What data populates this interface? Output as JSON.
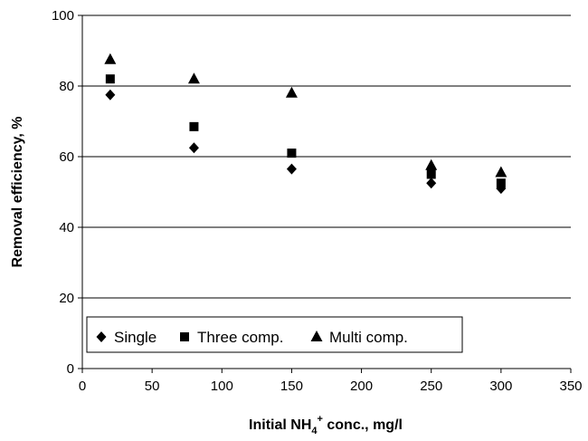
{
  "chart_data": {
    "type": "scatter",
    "title": "",
    "xlabel": {
      "prefix": "Initial NH",
      "sub": "4",
      "sup": "+",
      "suffix": " conc., mg/l"
    },
    "ylabel": "Removal efficiency, %",
    "xlim": [
      0,
      350
    ],
    "ylim": [
      0,
      100
    ],
    "x_ticks": [
      "0",
      "50",
      "100",
      "150",
      "200",
      "250",
      "300",
      "350"
    ],
    "y_ticks": [
      "0",
      "20",
      "40",
      "60",
      "80",
      "100"
    ],
    "grid": "horizontal",
    "legend_position": "bottom-left",
    "x": [
      20,
      80,
      150,
      250,
      300
    ],
    "series": [
      {
        "name": "Single",
        "marker": "diamond",
        "color": "#000000",
        "values": [
          77.5,
          62.5,
          56.5,
          52.5,
          51
        ]
      },
      {
        "name": "Three comp.",
        "marker": "square",
        "color": "#000000",
        "values": [
          82,
          68.5,
          61,
          55,
          52.5
        ]
      },
      {
        "name": "Multi comp.",
        "marker": "triangle",
        "color": "#000000",
        "values": [
          87.5,
          82,
          78,
          57.5,
          55.5
        ]
      }
    ]
  }
}
